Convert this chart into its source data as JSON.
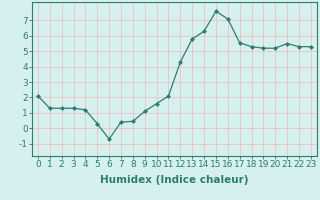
{
  "x": [
    0,
    1,
    2,
    3,
    4,
    5,
    6,
    7,
    8,
    9,
    10,
    11,
    12,
    13,
    14,
    15,
    16,
    17,
    18,
    19,
    20,
    21,
    22,
    23
  ],
  "y": [
    2.1,
    1.3,
    1.3,
    1.3,
    1.2,
    0.3,
    -0.7,
    0.4,
    0.45,
    1.1,
    1.6,
    2.1,
    4.3,
    5.8,
    6.3,
    7.6,
    7.1,
    5.55,
    5.3,
    5.2,
    5.2,
    5.5,
    5.3,
    5.3
  ],
  "xlabel": "Humidex (Indice chaleur)",
  "ylim": [
    -1.8,
    8.2
  ],
  "xlim": [
    -0.5,
    23.5
  ],
  "yticks": [
    -1,
    0,
    1,
    2,
    3,
    4,
    5,
    6,
    7
  ],
  "xticks": [
    0,
    1,
    2,
    3,
    4,
    5,
    6,
    7,
    8,
    9,
    10,
    11,
    12,
    13,
    14,
    15,
    16,
    17,
    18,
    19,
    20,
    21,
    22,
    23
  ],
  "line_color": "#2d7d6e",
  "marker": "D",
  "marker_size": 2.0,
  "bg_color": "#d6f0f0",
  "grid_color": "#f0b8b8",
  "xlabel_fontsize": 7.5,
  "tick_fontsize": 6.5
}
